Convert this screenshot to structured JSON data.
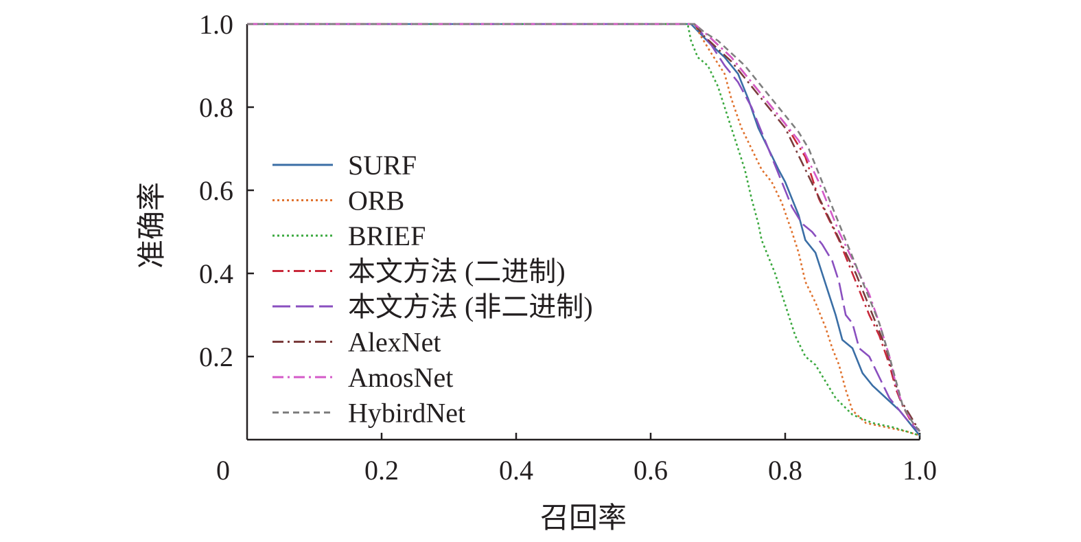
{
  "chart_data": {
    "type": "line",
    "title": "",
    "xlabel": "召回率",
    "ylabel": "准确率",
    "xlim": [
      0,
      1.0
    ],
    "ylim": [
      0,
      1.0
    ],
    "x_ticks": [
      "0",
      "0.2",
      "0.4",
      "0.6",
      "0.8",
      "1.0"
    ],
    "y_ticks": [
      "0.2",
      "0.4",
      "0.6",
      "0.8",
      "1.0"
    ],
    "grid": false,
    "legend_position": "center-left",
    "series": [
      {
        "name": "SURF",
        "color": "#3a6ea5",
        "dash": "solid",
        "points": [
          [
            0,
            1.0
          ],
          [
            0.66,
            1.0
          ],
          [
            0.672,
            0.98
          ],
          [
            0.69,
            0.95
          ],
          [
            0.71,
            0.92
          ],
          [
            0.73,
            0.88
          ],
          [
            0.745,
            0.82
          ],
          [
            0.76,
            0.75
          ],
          [
            0.775,
            0.7
          ],
          [
            0.79,
            0.65
          ],
          [
            0.8,
            0.62
          ],
          [
            0.81,
            0.58
          ],
          [
            0.82,
            0.54
          ],
          [
            0.83,
            0.48
          ],
          [
            0.845,
            0.45
          ],
          [
            0.855,
            0.4
          ],
          [
            0.865,
            0.35
          ],
          [
            0.875,
            0.3
          ],
          [
            0.885,
            0.24
          ],
          [
            0.9,
            0.22
          ],
          [
            0.915,
            0.16
          ],
          [
            0.93,
            0.13
          ],
          [
            0.95,
            0.1
          ],
          [
            0.97,
            0.07
          ],
          [
            0.985,
            0.04
          ],
          [
            1.0,
            0.01
          ]
        ]
      },
      {
        "name": "ORB",
        "color": "#e0722e",
        "dash": "dotted",
        "points": [
          [
            0,
            1.0
          ],
          [
            0.665,
            1.0
          ],
          [
            0.675,
            0.97
          ],
          [
            0.69,
            0.93
          ],
          [
            0.71,
            0.88
          ],
          [
            0.72,
            0.82
          ],
          [
            0.735,
            0.75
          ],
          [
            0.75,
            0.7
          ],
          [
            0.765,
            0.65
          ],
          [
            0.78,
            0.62
          ],
          [
            0.795,
            0.57
          ],
          [
            0.81,
            0.5
          ],
          [
            0.82,
            0.45
          ],
          [
            0.83,
            0.38
          ],
          [
            0.845,
            0.33
          ],
          [
            0.86,
            0.27
          ],
          [
            0.87,
            0.22
          ],
          [
            0.88,
            0.18
          ],
          [
            0.89,
            0.12
          ],
          [
            0.9,
            0.07
          ],
          [
            0.92,
            0.04
          ],
          [
            0.95,
            0.03
          ],
          [
            0.98,
            0.02
          ],
          [
            1.0,
            0.01
          ]
        ]
      },
      {
        "name": "BRIEF",
        "color": "#3aa83e",
        "dash": "dotted",
        "points": [
          [
            0,
            1.0
          ],
          [
            0.655,
            1.0
          ],
          [
            0.66,
            0.96
          ],
          [
            0.67,
            0.92
          ],
          [
            0.685,
            0.9
          ],
          [
            0.7,
            0.85
          ],
          [
            0.71,
            0.8
          ],
          [
            0.72,
            0.75
          ],
          [
            0.73,
            0.7
          ],
          [
            0.74,
            0.65
          ],
          [
            0.75,
            0.58
          ],
          [
            0.76,
            0.52
          ],
          [
            0.765,
            0.48
          ],
          [
            0.775,
            0.44
          ],
          [
            0.785,
            0.4
          ],
          [
            0.795,
            0.35
          ],
          [
            0.805,
            0.3
          ],
          [
            0.815,
            0.25
          ],
          [
            0.83,
            0.2
          ],
          [
            0.845,
            0.18
          ],
          [
            0.86,
            0.14
          ],
          [
            0.875,
            0.1
          ],
          [
            0.9,
            0.06
          ],
          [
            0.93,
            0.04
          ],
          [
            0.96,
            0.03
          ],
          [
            1.0,
            0.01
          ]
        ]
      },
      {
        "name": "本文方法 (二进制)",
        "color": "#c8283a",
        "dash": "dashdot",
        "points": [
          [
            0,
            1.0
          ],
          [
            0.665,
            1.0
          ],
          [
            0.68,
            0.98
          ],
          [
            0.7,
            0.95
          ],
          [
            0.72,
            0.92
          ],
          [
            0.74,
            0.88
          ],
          [
            0.76,
            0.84
          ],
          [
            0.78,
            0.8
          ],
          [
            0.8,
            0.76
          ],
          [
            0.815,
            0.72
          ],
          [
            0.83,
            0.68
          ],
          [
            0.84,
            0.63
          ],
          [
            0.85,
            0.58
          ],
          [
            0.865,
            0.53
          ],
          [
            0.88,
            0.48
          ],
          [
            0.895,
            0.42
          ],
          [
            0.91,
            0.36
          ],
          [
            0.925,
            0.3
          ],
          [
            0.94,
            0.25
          ],
          [
            0.955,
            0.18
          ],
          [
            0.965,
            0.12
          ],
          [
            0.975,
            0.08
          ],
          [
            0.985,
            0.05
          ],
          [
            1.0,
            0.02
          ]
        ]
      },
      {
        "name": "本文方法 (非二进制)",
        "color": "#8a4fbf",
        "dash": "longdash",
        "points": [
          [
            0,
            1.0
          ],
          [
            0.665,
            1.0
          ],
          [
            0.675,
            0.98
          ],
          [
            0.69,
            0.95
          ],
          [
            0.71,
            0.9
          ],
          [
            0.73,
            0.86
          ],
          [
            0.75,
            0.8
          ],
          [
            0.765,
            0.74
          ],
          [
            0.78,
            0.68
          ],
          [
            0.795,
            0.62
          ],
          [
            0.81,
            0.56
          ],
          [
            0.825,
            0.52
          ],
          [
            0.84,
            0.5
          ],
          [
            0.855,
            0.47
          ],
          [
            0.87,
            0.43
          ],
          [
            0.88,
            0.38
          ],
          [
            0.89,
            0.3
          ],
          [
            0.9,
            0.28
          ],
          [
            0.91,
            0.22
          ],
          [
            0.925,
            0.2
          ],
          [
            0.94,
            0.15
          ],
          [
            0.955,
            0.1
          ],
          [
            0.97,
            0.07
          ],
          [
            0.985,
            0.04
          ],
          [
            1.0,
            0.02
          ]
        ]
      },
      {
        "name": "AlexNet",
        "color": "#7a3b3b",
        "dash": "dashdot",
        "points": [
          [
            0,
            1.0
          ],
          [
            0.665,
            1.0
          ],
          [
            0.68,
            0.97
          ],
          [
            0.7,
            0.94
          ],
          [
            0.72,
            0.91
          ],
          [
            0.74,
            0.87
          ],
          [
            0.76,
            0.83
          ],
          [
            0.78,
            0.79
          ],
          [
            0.8,
            0.75
          ],
          [
            0.815,
            0.7
          ],
          [
            0.83,
            0.65
          ],
          [
            0.845,
            0.6
          ],
          [
            0.86,
            0.55
          ],
          [
            0.875,
            0.5
          ],
          [
            0.89,
            0.45
          ],
          [
            0.905,
            0.4
          ],
          [
            0.92,
            0.34
          ],
          [
            0.935,
            0.28
          ],
          [
            0.95,
            0.22
          ],
          [
            0.96,
            0.16
          ],
          [
            0.97,
            0.1
          ],
          [
            0.985,
            0.06
          ],
          [
            1.0,
            0.02
          ]
        ]
      },
      {
        "name": "AmosNet",
        "color": "#d45ac8",
        "dash": "dashdot",
        "points": [
          [
            0,
            1.0
          ],
          [
            0.665,
            1.0
          ],
          [
            0.68,
            0.98
          ],
          [
            0.7,
            0.95
          ],
          [
            0.72,
            0.92
          ],
          [
            0.74,
            0.88
          ],
          [
            0.76,
            0.84
          ],
          [
            0.78,
            0.8
          ],
          [
            0.8,
            0.76
          ],
          [
            0.82,
            0.72
          ],
          [
            0.835,
            0.67
          ],
          [
            0.85,
            0.62
          ],
          [
            0.865,
            0.56
          ],
          [
            0.88,
            0.5
          ],
          [
            0.895,
            0.45
          ],
          [
            0.91,
            0.4
          ],
          [
            0.925,
            0.35
          ],
          [
            0.94,
            0.28
          ],
          [
            0.955,
            0.2
          ],
          [
            0.965,
            0.13
          ],
          [
            0.975,
            0.08
          ],
          [
            0.99,
            0.04
          ],
          [
            1.0,
            0.02
          ]
        ]
      },
      {
        "name": "HybirdNet",
        "color": "#7f7f7f",
        "dash": "dashed",
        "points": [
          [
            0,
            1.0
          ],
          [
            0.665,
            1.0
          ],
          [
            0.68,
            0.98
          ],
          [
            0.7,
            0.96
          ],
          [
            0.72,
            0.93
          ],
          [
            0.74,
            0.9
          ],
          [
            0.76,
            0.86
          ],
          [
            0.78,
            0.82
          ],
          [
            0.8,
            0.78
          ],
          [
            0.82,
            0.74
          ],
          [
            0.835,
            0.7
          ],
          [
            0.85,
            0.64
          ],
          [
            0.865,
            0.58
          ],
          [
            0.88,
            0.52
          ],
          [
            0.895,
            0.46
          ],
          [
            0.91,
            0.4
          ],
          [
            0.925,
            0.34
          ],
          [
            0.94,
            0.28
          ],
          [
            0.955,
            0.2
          ],
          [
            0.965,
            0.14
          ],
          [
            0.975,
            0.08
          ],
          [
            0.99,
            0.04
          ],
          [
            1.0,
            0.02
          ]
        ]
      }
    ]
  }
}
